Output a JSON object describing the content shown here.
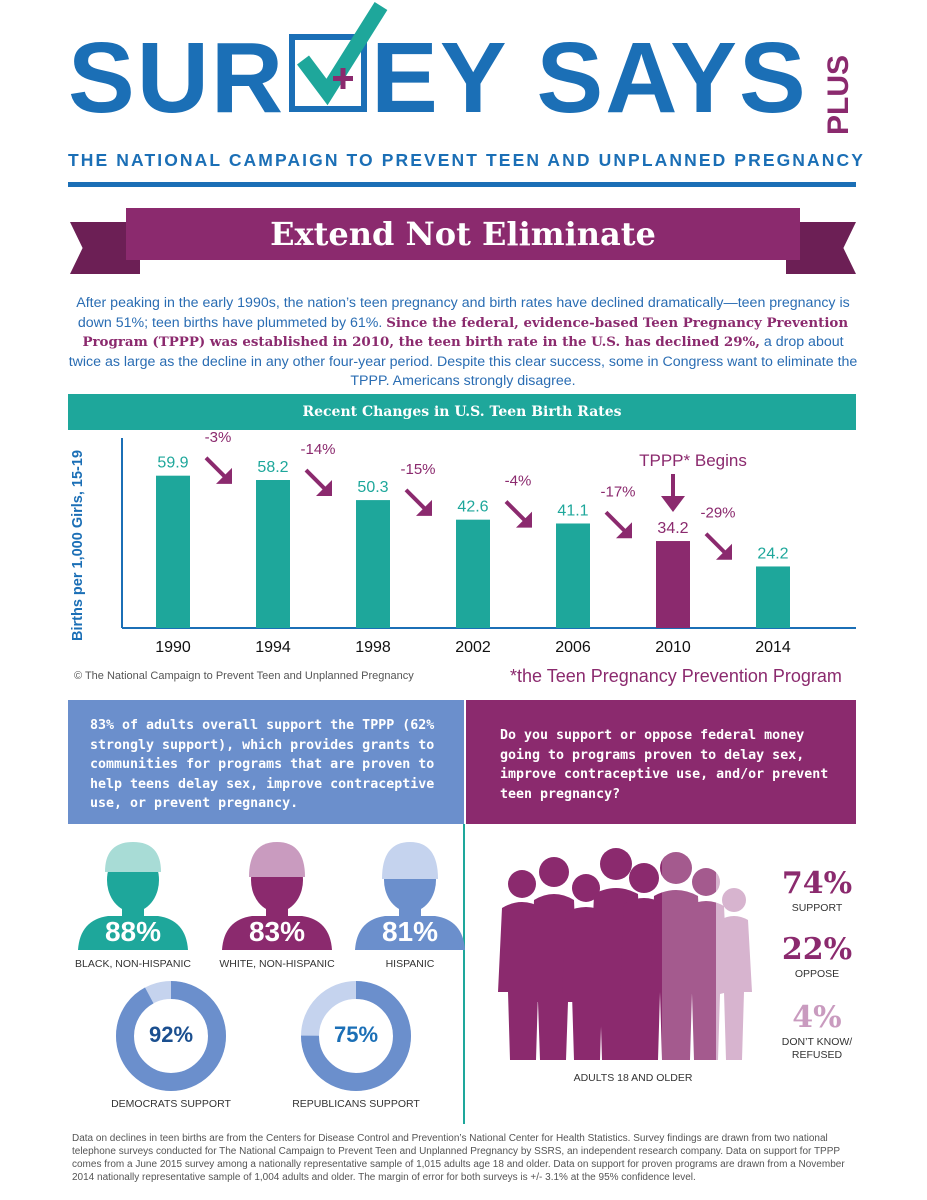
{
  "header": {
    "logo_left": "SUR",
    "logo_right": "EY SAYS",
    "logo_plus": "PLUS",
    "subtitle": "THE NATIONAL CAMPAIGN TO PREVENT TEEN AND UNPLANNED PREGNANCY"
  },
  "banner": {
    "title": "Extend Not Eliminate"
  },
  "intro": {
    "part1": "After peaking in the early 1990s, the nation’s teen pregnancy and birth rates have declined dramatically—teen pregnancy is down 51%; teen births have plummeted by 61%. ",
    "bold": "Since the federal, evidence-based Teen Pregnancy Prevention Program (TPPP) was established in 2010, the teen birth rate in the U.S. has declined 29%,",
    "part2": " a drop about twice as large as the decline in any other four-year period. Despite this clear success, some in Congress want to eliminate the TPPP. Americans strongly disagree."
  },
  "chart_data": {
    "type": "bar",
    "title": "Recent Changes in U.S. Teen Birth Rates",
    "ylabel": "Births per 1,000 Girls, 15-19",
    "categories": [
      "1990",
      "1994",
      "1998",
      "2002",
      "2006",
      "2010",
      "2014"
    ],
    "values": [
      59.9,
      58.2,
      50.3,
      42.6,
      41.1,
      34.2,
      24.2
    ],
    "value_labels": [
      "59.9",
      "58.2",
      "50.3",
      "42.6",
      "41.1",
      "34.2",
      "24.2"
    ],
    "changes": [
      "-3%",
      "-14%",
      "-15%",
      "-4%",
      "-17%",
      "-29%"
    ],
    "annotation": "TPPP* Begins",
    "highlight_category": "2010",
    "ylim": [
      0,
      70
    ],
    "colors": {
      "bar": "#1ea79b",
      "highlight": "#8b2a6e",
      "arrow": "#8b2a6e"
    }
  },
  "copyright": "© The National Campaign to Prevent Teen and Unplanned Pregnancy",
  "footnote": "*the Teen Pregnancy Prevention Program",
  "panel_left": {
    "text": "83% of adults overall support the TPPP (62% strongly support), which provides grants to communities for programs that are proven to help teens delay sex, improve contraceptive use, or prevent pregnancy."
  },
  "panel_right": {
    "text": "Do you support or oppose federal money going to programs proven to delay sex, improve contraceptive use, and/or prevent teen pregnancy?"
  },
  "demographics": [
    {
      "pct": "88%",
      "label": "BLACK, NON-HISPANIC",
      "color": "#1ea79b",
      "hair": "#a8dcd6",
      "fill": 0.88
    },
    {
      "pct": "83%",
      "label": "WHITE, NON-HISPANIC",
      "color": "#8b2a6e",
      "hair": "#c99bbf",
      "fill": 0.83
    },
    {
      "pct": "81%",
      "label": "HISPANIC",
      "color": "#6b8fcc",
      "hair": "#c5d3ee",
      "fill": 0.81
    }
  ],
  "party": [
    {
      "pct": "92%",
      "label": "DEMOCRATS SUPPORT",
      "value": 92
    },
    {
      "pct": "75%",
      "label": "REPUBLICANS SUPPORT",
      "value": 75
    }
  ],
  "adults": {
    "label": "ADULTS 18 AND OLDER",
    "stats": [
      {
        "num": "74%",
        "label": "SUPPORT",
        "color": "#8b2a6e",
        "value": 74
      },
      {
        "num": "22%",
        "label": "OPPOSE",
        "color": "#8b2a6e",
        "value": 22
      },
      {
        "num": "4%",
        "label": "DON’T KNOW/ REFUSED",
        "color": "#c99bbf",
        "value": 4
      }
    ]
  },
  "source": "Data on declines in teen births are from the Centers for Disease Control and Prevention’s National Center for Health Statistics. Survey findings are drawn from two national telephone surveys conducted for The National Campaign to Prevent Teen and Unplanned Pregnancy by SSRS, an independent research company. Data on support for TPPP comes from a June 2015 survey among a nationally representative sample of 1,015 adults age 18 and older. Data on support for proven programs are drawn from a November 2014 nationally representative sample of 1,004 adults and older. The margin of error for both surveys is +/- 3.1% at the 95% confidence level."
}
